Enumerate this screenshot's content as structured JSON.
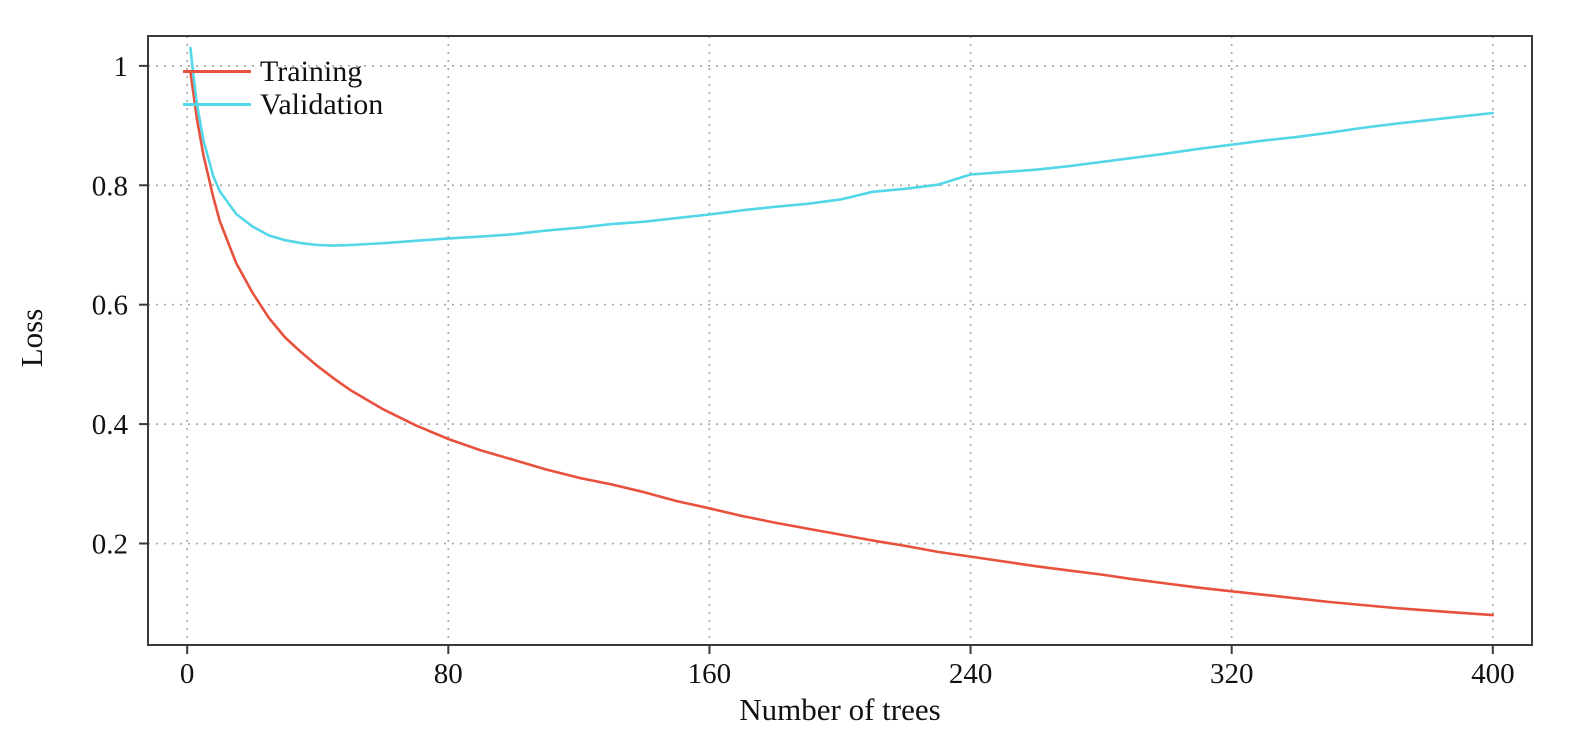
{
  "chart_data": {
    "type": "line",
    "title": "",
    "xlabel": "Number of trees",
    "ylabel": "Loss",
    "xlim": [
      -12,
      412
    ],
    "ylim": [
      0.03,
      1.05
    ],
    "grid": "dotted",
    "legend_position": "top-left",
    "x_ticks": [
      {
        "value": 0,
        "label": "0"
      },
      {
        "value": 80,
        "label": "80"
      },
      {
        "value": 160,
        "label": "160"
      },
      {
        "value": 240,
        "label": "240"
      },
      {
        "value": 320,
        "label": "320"
      },
      {
        "value": 400,
        "label": "400"
      }
    ],
    "y_ticks": [
      {
        "value": 0.2,
        "label": "0.2"
      },
      {
        "value": 0.4,
        "label": "0.4"
      },
      {
        "value": 0.6,
        "label": "0.6"
      },
      {
        "value": 0.8,
        "label": "0.8"
      },
      {
        "value": 1.0,
        "label": "1"
      }
    ],
    "x": [
      1,
      2,
      3,
      5,
      8,
      10,
      15,
      20,
      25,
      30,
      35,
      40,
      45,
      50,
      60,
      70,
      80,
      90,
      100,
      110,
      120,
      130,
      140,
      150,
      160,
      170,
      180,
      190,
      200,
      210,
      220,
      230,
      240,
      250,
      260,
      270,
      280,
      290,
      300,
      310,
      320,
      330,
      340,
      350,
      360,
      370,
      380,
      390,
      400
    ],
    "series": [
      {
        "name": "Training",
        "color": "#e8513d",
        "y": [
          0.99,
          0.95,
          0.91,
          0.85,
          0.78,
          0.74,
          0.67,
          0.62,
          0.578,
          0.545,
          0.52,
          0.497,
          0.476,
          0.457,
          0.425,
          0.398,
          0.375,
          0.356,
          0.34,
          0.324,
          0.31,
          0.299,
          0.286,
          0.271,
          0.259,
          0.246,
          0.235,
          0.225,
          0.215,
          0.205,
          0.196,
          0.186,
          0.178,
          0.17,
          0.162,
          0.155,
          0.148,
          0.14,
          0.133,
          0.126,
          0.12,
          0.114,
          0.108,
          0.102,
          0.097,
          0.092,
          0.088,
          0.084,
          0.08
        ]
      },
      {
        "name": "Validation",
        "color": "#53d7e8",
        "y": [
          1.03,
          0.98,
          0.935,
          0.875,
          0.815,
          0.79,
          0.752,
          0.731,
          0.716,
          0.708,
          0.703,
          0.7,
          0.699,
          0.7,
          0.703,
          0.707,
          0.711,
          0.714,
          0.718,
          0.724,
          0.729,
          0.735,
          0.739,
          0.745,
          0.751,
          0.758,
          0.764,
          0.769,
          0.776,
          0.789,
          0.794,
          0.801,
          0.818,
          0.822,
          0.826,
          0.832,
          0.839,
          0.846,
          0.853,
          0.861,
          0.868,
          0.875,
          0.881,
          0.888,
          0.896,
          0.903,
          0.909,
          0.915,
          0.921
        ]
      }
    ]
  },
  "colors": {
    "background": "#ffffff",
    "frame": "#3a3a3a",
    "grid": "#aaaaaa",
    "text": "#111111"
  }
}
